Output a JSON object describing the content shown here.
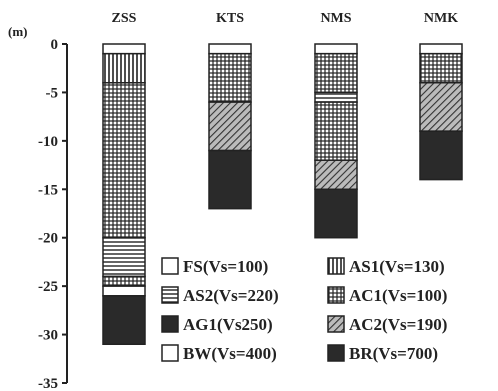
{
  "chart_data": {
    "type": "bar",
    "subtype": "stacked-soil-profile",
    "title": "",
    "ylabel": "(m)",
    "xlabel": "",
    "ylim": [
      -35,
      0
    ],
    "yticks": [
      0,
      -5,
      -10,
      -15,
      -20,
      -25,
      -30,
      -35
    ],
    "grid": false,
    "legend_position": "bottom-right",
    "categories": [
      "ZSS",
      "KTS",
      "NMS",
      "NMK"
    ],
    "layer_types": [
      {
        "code": "FS",
        "label": "FS(Vs=100)",
        "vs": 100,
        "pattern": "blank",
        "color": "#ffffff"
      },
      {
        "code": "AS1",
        "label": "AS1(Vs=130)",
        "vs": 130,
        "pattern": "vertical",
        "color": "#222222"
      },
      {
        "code": "AS2",
        "label": "AS2(Vs=220)",
        "vs": 220,
        "pattern": "horizontal",
        "color": "#222222"
      },
      {
        "code": "AC1",
        "label": "AC1(Vs=100)",
        "vs": 100,
        "pattern": "grid",
        "color": "#222222"
      },
      {
        "code": "AG1",
        "label": "AG1(Vs250)",
        "vs": 250,
        "pattern": "solid",
        "color": "#2a2a2a"
      },
      {
        "code": "AC2",
        "label": "AC2(Vs=190)",
        "vs": 190,
        "pattern": "diagonal",
        "color": "#444444"
      },
      {
        "code": "BW",
        "label": "BW(Vs=400)",
        "vs": 400,
        "pattern": "blank",
        "color": "#ffffff"
      },
      {
        "code": "BR",
        "label": "BR(Vs=700)",
        "vs": 700,
        "pattern": "solid",
        "color": "#2a2a2a"
      }
    ],
    "series": [
      {
        "name": "ZSS",
        "layers": [
          {
            "type": "FS",
            "top": 0,
            "bottom": -1
          },
          {
            "type": "AS1",
            "top": -1,
            "bottom": -4
          },
          {
            "type": "AC1",
            "top": -4,
            "bottom": -20
          },
          {
            "type": "AS2",
            "top": -20,
            "bottom": -24
          },
          {
            "type": "AC1",
            "top": -24,
            "bottom": -25
          },
          {
            "type": "BW",
            "top": -25,
            "bottom": -26
          },
          {
            "type": "BR",
            "top": -26,
            "bottom": -31
          }
        ]
      },
      {
        "name": "KTS",
        "layers": [
          {
            "type": "FS",
            "top": 0,
            "bottom": -1
          },
          {
            "type": "AC1",
            "top": -1,
            "bottom": -6
          },
          {
            "type": "AC2",
            "top": -6,
            "bottom": -11
          },
          {
            "type": "BR",
            "top": -11,
            "bottom": -17
          }
        ]
      },
      {
        "name": "NMS",
        "layers": [
          {
            "type": "FS",
            "top": 0,
            "bottom": -1
          },
          {
            "type": "AC1",
            "top": -1,
            "bottom": -5
          },
          {
            "type": "AS2",
            "top": -5,
            "bottom": -6
          },
          {
            "type": "AC1",
            "top": -6,
            "bottom": -12
          },
          {
            "type": "AC2",
            "top": -12,
            "bottom": -15
          },
          {
            "type": "BR",
            "top": -15,
            "bottom": -20
          }
        ]
      },
      {
        "name": "NMK",
        "layers": [
          {
            "type": "FS",
            "top": 0,
            "bottom": -1
          },
          {
            "type": "AC1",
            "top": -1,
            "bottom": -4
          },
          {
            "type": "AC2",
            "top": -4,
            "bottom": -9
          },
          {
            "type": "BR",
            "top": -9,
            "bottom": -14
          }
        ]
      }
    ]
  }
}
